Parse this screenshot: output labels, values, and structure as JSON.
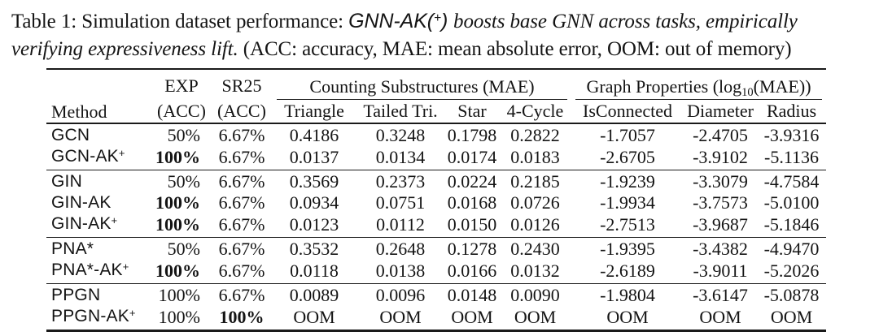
{
  "page": {
    "background_color": "#ffffff",
    "text_color": "#141414",
    "rule_color": "#1a1a1a"
  },
  "caption": {
    "normal_start": "Table 1: Simulation dataset performance: ",
    "method_highlight": "GNN-AK(",
    "method_highlight_sup": "+",
    "method_highlight_close": ") ",
    "italic_line1": "boosts base GNN across tasks, empirically",
    "italic_line2": "verifying expressiveness lift.",
    "normal_end": " (ACC: accuracy, MAE: mean absolute error, OOM: out of memory)"
  },
  "table": {
    "columns": {
      "method": "Method",
      "exp": "EXP",
      "exp_sub": "(ACC)",
      "sr25": "SR25",
      "sr25_sub": "(ACC)",
      "counting_group": "Counting Substructures (MAE)",
      "graph_group_prefix": "Graph Properties (log",
      "graph_group_sub": "10",
      "graph_group_suffix": "(MAE))",
      "counting_cols": [
        "Triangle",
        "Tailed Tri.",
        "Star",
        "4-Cycle"
      ],
      "graph_cols": [
        "IsConnected",
        "Diameter",
        "Radius"
      ]
    },
    "groups": [
      {
        "rows": [
          {
            "method": "GCN",
            "sup": "",
            "exp": "50%",
            "exp_bold": false,
            "sr25": "6.67%",
            "sr25_bold": false,
            "values": [
              "0.4186",
              "0.3248",
              "0.1798",
              "0.2822",
              "-1.7057",
              "-2.4705",
              "-3.9316"
            ]
          },
          {
            "method": "GCN-AK",
            "sup": "+",
            "exp": "100%",
            "exp_bold": true,
            "sr25": "6.67%",
            "sr25_bold": false,
            "values": [
              "0.0137",
              "0.0134",
              "0.0174",
              "0.0183",
              "-2.6705",
              "-3.9102",
              "-5.1136"
            ]
          }
        ]
      },
      {
        "rows": [
          {
            "method": "GIN",
            "sup": "",
            "exp": "50%",
            "exp_bold": false,
            "sr25": "6.67%",
            "sr25_bold": false,
            "values": [
              "0.3569",
              "0.2373",
              "0.0224",
              "0.2185",
              "-1.9239",
              "-3.3079",
              "-4.7584"
            ]
          },
          {
            "method": "GIN-AK",
            "sup": "",
            "exp": "100%",
            "exp_bold": true,
            "sr25": "6.67%",
            "sr25_bold": false,
            "values": [
              "0.0934",
              "0.0751",
              "0.0168",
              "0.0726",
              "-1.9934",
              "-3.7573",
              "-5.0100"
            ]
          },
          {
            "method": "GIN-AK",
            "sup": "+",
            "exp": "100%",
            "exp_bold": true,
            "sr25": "6.67%",
            "sr25_bold": false,
            "values": [
              "0.0123",
              "0.0112",
              "0.0150",
              "0.0126",
              "-2.7513",
              "-3.9687",
              "-5.1846"
            ]
          }
        ]
      },
      {
        "rows": [
          {
            "method": "PNA*",
            "sup": "",
            "exp": "50%",
            "exp_bold": false,
            "sr25": "6.67%",
            "sr25_bold": false,
            "values": [
              "0.3532",
              "0.2648",
              "0.1278",
              "0.2430",
              "-1.9395",
              "-3.4382",
              "-4.9470"
            ]
          },
          {
            "method": "PNA*-AK",
            "sup": "+",
            "exp": "100%",
            "exp_bold": true,
            "sr25": "6.67%",
            "sr25_bold": false,
            "values": [
              "0.0118",
              "0.0138",
              "0.0166",
              "0.0132",
              "-2.6189",
              "-3.9011",
              "-5.2026"
            ]
          }
        ]
      },
      {
        "rows": [
          {
            "method": "PPGN",
            "sup": "",
            "exp": "100%",
            "exp_bold": false,
            "sr25": "6.67%",
            "sr25_bold": false,
            "values": [
              "0.0089",
              "0.0096",
              "0.0148",
              "0.0090",
              "-1.9804",
              "-3.6147",
              "-5.0878"
            ]
          },
          {
            "method": "PPGN-AK",
            "sup": "+",
            "exp": "100%",
            "exp_bold": false,
            "sr25": "100%",
            "sr25_bold": true,
            "values": [
              "OOM",
              "OOM",
              "OOM",
              "OOM",
              "OOM",
              "OOM",
              "OOM"
            ]
          }
        ]
      }
    ]
  }
}
